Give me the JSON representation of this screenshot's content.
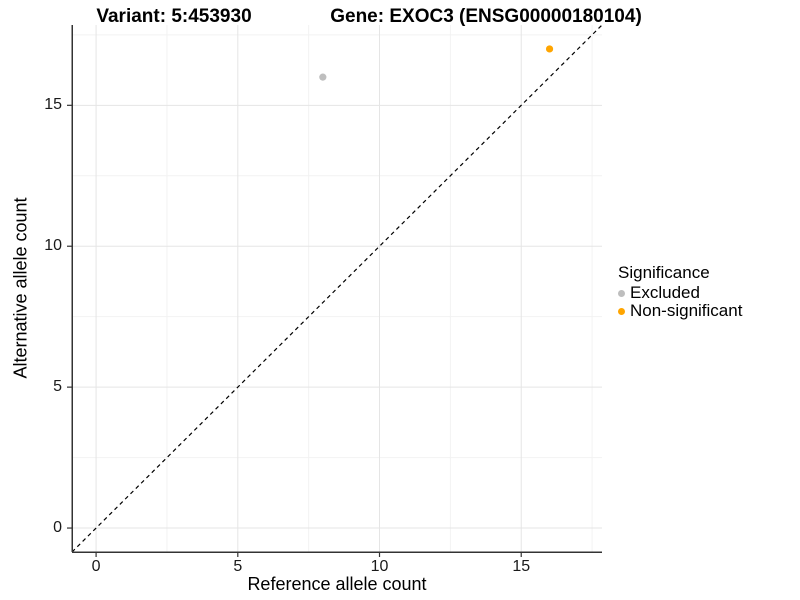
{
  "header": {
    "title_left": "Variant: 5:453930",
    "title_right": "Gene: EXOC3 (ENSG00000180104)"
  },
  "chart_data": {
    "type": "scatter",
    "xlabel": "Reference allele count",
    "ylabel": "Alternative allele count",
    "xlim": [
      -0.85,
      17.85
    ],
    "ylim": [
      -0.85,
      17.85
    ],
    "xticks": [
      0,
      5,
      10,
      15
    ],
    "yticks": [
      0,
      5,
      10,
      15
    ],
    "minor_ticks_x": [
      2.5,
      7.5,
      12.5,
      17.5
    ],
    "minor_ticks_y": [
      2.5,
      7.5,
      12.5,
      17.5
    ],
    "grid": true,
    "identity_line": {
      "style": "dashed",
      "color": "#000000",
      "slope": 1,
      "intercept": 0
    },
    "series": [
      {
        "name": "Excluded",
        "color": "#bebebe",
        "points": [
          [
            8,
            16
          ]
        ]
      },
      {
        "name": "Non-significant",
        "color": "#ffa500",
        "points": [
          [
            16,
            17
          ]
        ]
      }
    ],
    "legend": {
      "title": "Significance",
      "position": "right",
      "entries": [
        "Excluded",
        "Non-significant"
      ]
    }
  },
  "colors": {
    "grid_major": "#e5e5e5",
    "grid_minor": "#f2f2f2",
    "axis_line": "#333333",
    "identity_line": "#000000",
    "excluded": "#bebebe",
    "non_significant": "#ffa500"
  }
}
